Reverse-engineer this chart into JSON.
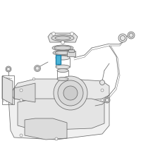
{
  "bg": "#ffffff",
  "lc": "#6a6a6a",
  "lc2": "#888888",
  "hl": "#4ab4d8",
  "hl_dark": "#1e7fa8",
  "lw_main": 0.55,
  "lw_thin": 0.35,
  "lw_thick": 0.8
}
